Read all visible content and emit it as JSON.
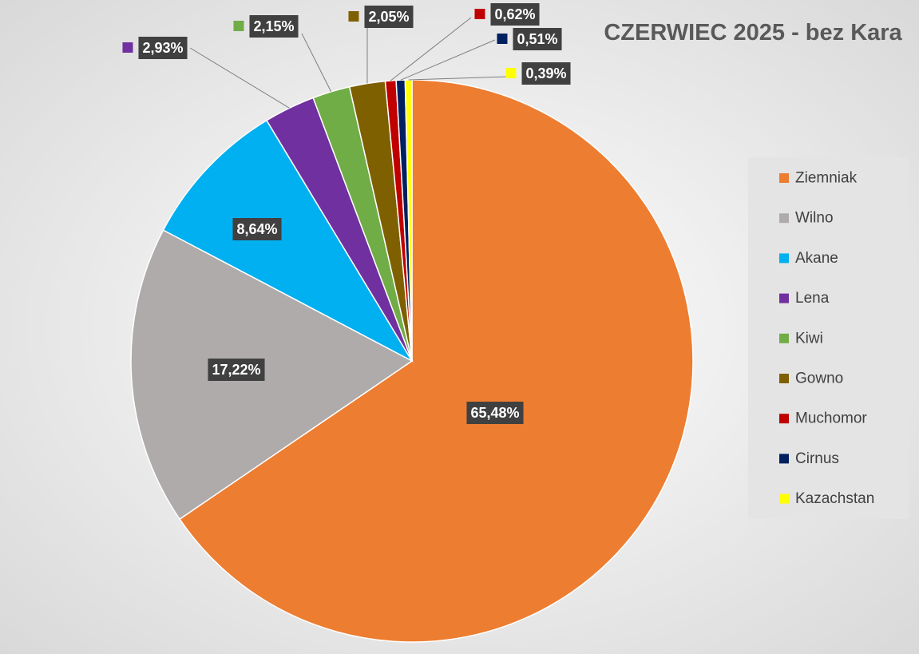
{
  "chart_data": {
    "type": "pie",
    "title": "CZERWIEC 2025 - bez Kara",
    "categories": [
      "Ziemniak",
      "Wilno",
      "Akane",
      "Lena",
      "Kiwi",
      "Gowno",
      "Muchomor",
      "Cirnus",
      "Kazachstan"
    ],
    "values": [
      65.48,
      17.22,
      8.64,
      2.93,
      2.15,
      2.05,
      0.62,
      0.51,
      0.39
    ],
    "value_labels": [
      "65,48%",
      "17,22%",
      "8,64%",
      "2,93%",
      "2,15%",
      "2,05%",
      "0,62%",
      "0,51%",
      "0,39%"
    ],
    "colors": [
      "#ED7D31",
      "#AFABAB",
      "#00B0F0",
      "#7030A0",
      "#70AD47",
      "#7F6000",
      "#C00000",
      "#002060",
      "#FFFF00"
    ]
  }
}
